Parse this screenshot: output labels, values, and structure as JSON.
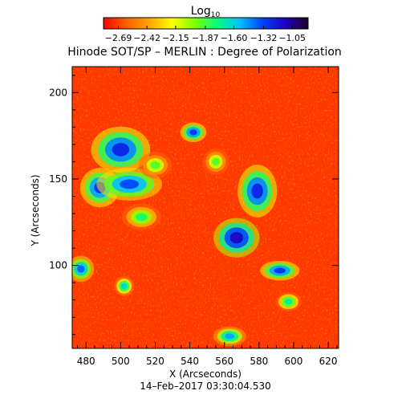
{
  "chart_data": {
    "type": "heatmap",
    "title": "Hinode SOT/SP – MERLIN : Degree of Polarization",
    "xlabel": "X (Arcseconds)",
    "ylabel": "Y (Arcseconds)",
    "xlim": [
      472,
      626
    ],
    "ylim": [
      52,
      215
    ],
    "xticks": [
      480,
      500,
      520,
      540,
      560,
      580,
      600,
      620
    ],
    "yticks": [
      100,
      150,
      200
    ],
    "timestamp": "14–Feb–2017 03:30:04.530",
    "colorbar": {
      "label_main": "Log",
      "label_sub": "10",
      "range": [
        -2.83,
        -0.9
      ],
      "ticks": [
        "−2.69",
        "−2.42",
        "−2.15",
        "−1.87",
        "−1.60",
        "−1.32",
        "−1.05"
      ],
      "tick_values": [
        -2.69,
        -2.42,
        -2.15,
        -1.87,
        -1.6,
        -1.32,
        -1.05
      ],
      "colormap": [
        "#ff0000",
        "#ff6000",
        "#ffa500",
        "#ffff00",
        "#80ff00",
        "#00ff80",
        "#00c0ff",
        "#0040ff",
        "#2000c0",
        "#200020"
      ]
    },
    "background_value": -2.6,
    "high_polarization_regions": [
      {
        "x": 500,
        "y": 167,
        "rx": 9,
        "ry": 7,
        "value": -1.25
      },
      {
        "x": 488,
        "y": 145,
        "rx": 6,
        "ry": 6,
        "value": -1.3
      },
      {
        "x": 505,
        "y": 147,
        "rx": 10,
        "ry": 5,
        "value": -1.35
      },
      {
        "x": 477,
        "y": 98,
        "rx": 4,
        "ry": 4,
        "value": -1.4
      },
      {
        "x": 542,
        "y": 177,
        "rx": 4,
        "ry": 3,
        "value": -1.3
      },
      {
        "x": 579,
        "y": 143,
        "rx": 6,
        "ry": 8,
        "value": -1.25
      },
      {
        "x": 567,
        "y": 116,
        "rx": 7,
        "ry": 6,
        "value": -1.15
      },
      {
        "x": 592,
        "y": 97,
        "rx": 6,
        "ry": 3,
        "value": -1.3
      },
      {
        "x": 563,
        "y": 59,
        "rx": 5,
        "ry": 3,
        "value": -1.5
      },
      {
        "x": 512,
        "y": 128,
        "rx": 6,
        "ry": 4,
        "value": -1.8
      },
      {
        "x": 520,
        "y": 158,
        "rx": 5,
        "ry": 4,
        "value": -1.9
      },
      {
        "x": 555,
        "y": 160,
        "rx": 4,
        "ry": 4,
        "value": -1.9
      },
      {
        "x": 597,
        "y": 79,
        "rx": 4,
        "ry": 3,
        "value": -1.7
      },
      {
        "x": 502,
        "y": 88,
        "rx": 3,
        "ry": 3,
        "value": -1.6
      }
    ]
  }
}
